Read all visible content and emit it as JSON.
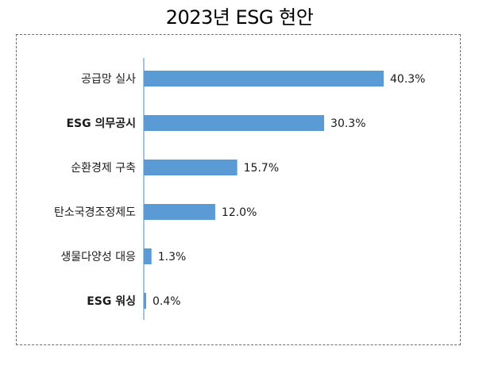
{
  "chart_data": {
    "type": "bar",
    "orientation": "horizontal",
    "title": "2023년 ESG 현안",
    "categories": [
      "공급망 실사",
      "ESG 의무공시",
      "순환경제 구축",
      "탄소국경조정제도",
      "생물다양성 대응",
      "ESG 워싱"
    ],
    "values": [
      40.3,
      30.3,
      15.7,
      12.0,
      1.3,
      0.4
    ],
    "value_labels": [
      "40.3%",
      "30.3%",
      "15.7%",
      "12.0%",
      "1.3%",
      "0.4%"
    ],
    "xlim": [
      0,
      40.3
    ],
    "grid": false,
    "legend": "none",
    "bar_color": "#5b9bd5",
    "axis_color": "#7fb1e0"
  }
}
